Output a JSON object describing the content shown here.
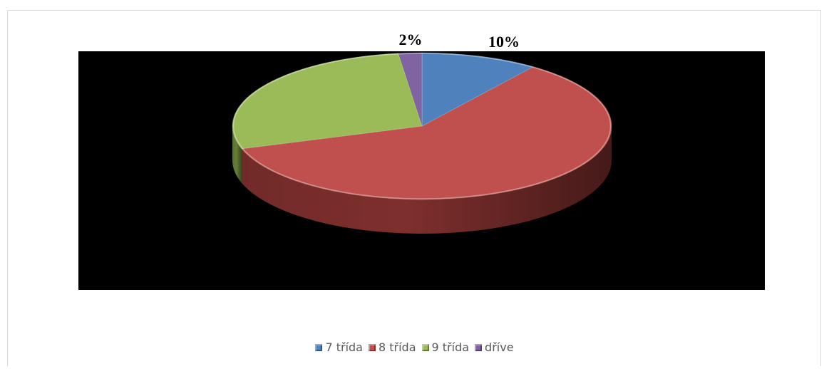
{
  "chart_data": {
    "type": "pie",
    "title": "",
    "categories": [
      "7 třída",
      "8 třída",
      "9 třída",
      "dříve"
    ],
    "values": [
      10,
      60,
      28,
      2
    ],
    "data_labels": [
      "10%",
      "",
      "",
      "2%"
    ],
    "colors": [
      "#4f81bd",
      "#c0504d",
      "#9bbb59",
      "#8064a2"
    ],
    "side_colors": [
      "#34568a",
      "#7e2f2d",
      "#667d37",
      "#533f6e"
    ],
    "plot_background": "#000000",
    "legend_position": "bottom",
    "style": "3d"
  }
}
